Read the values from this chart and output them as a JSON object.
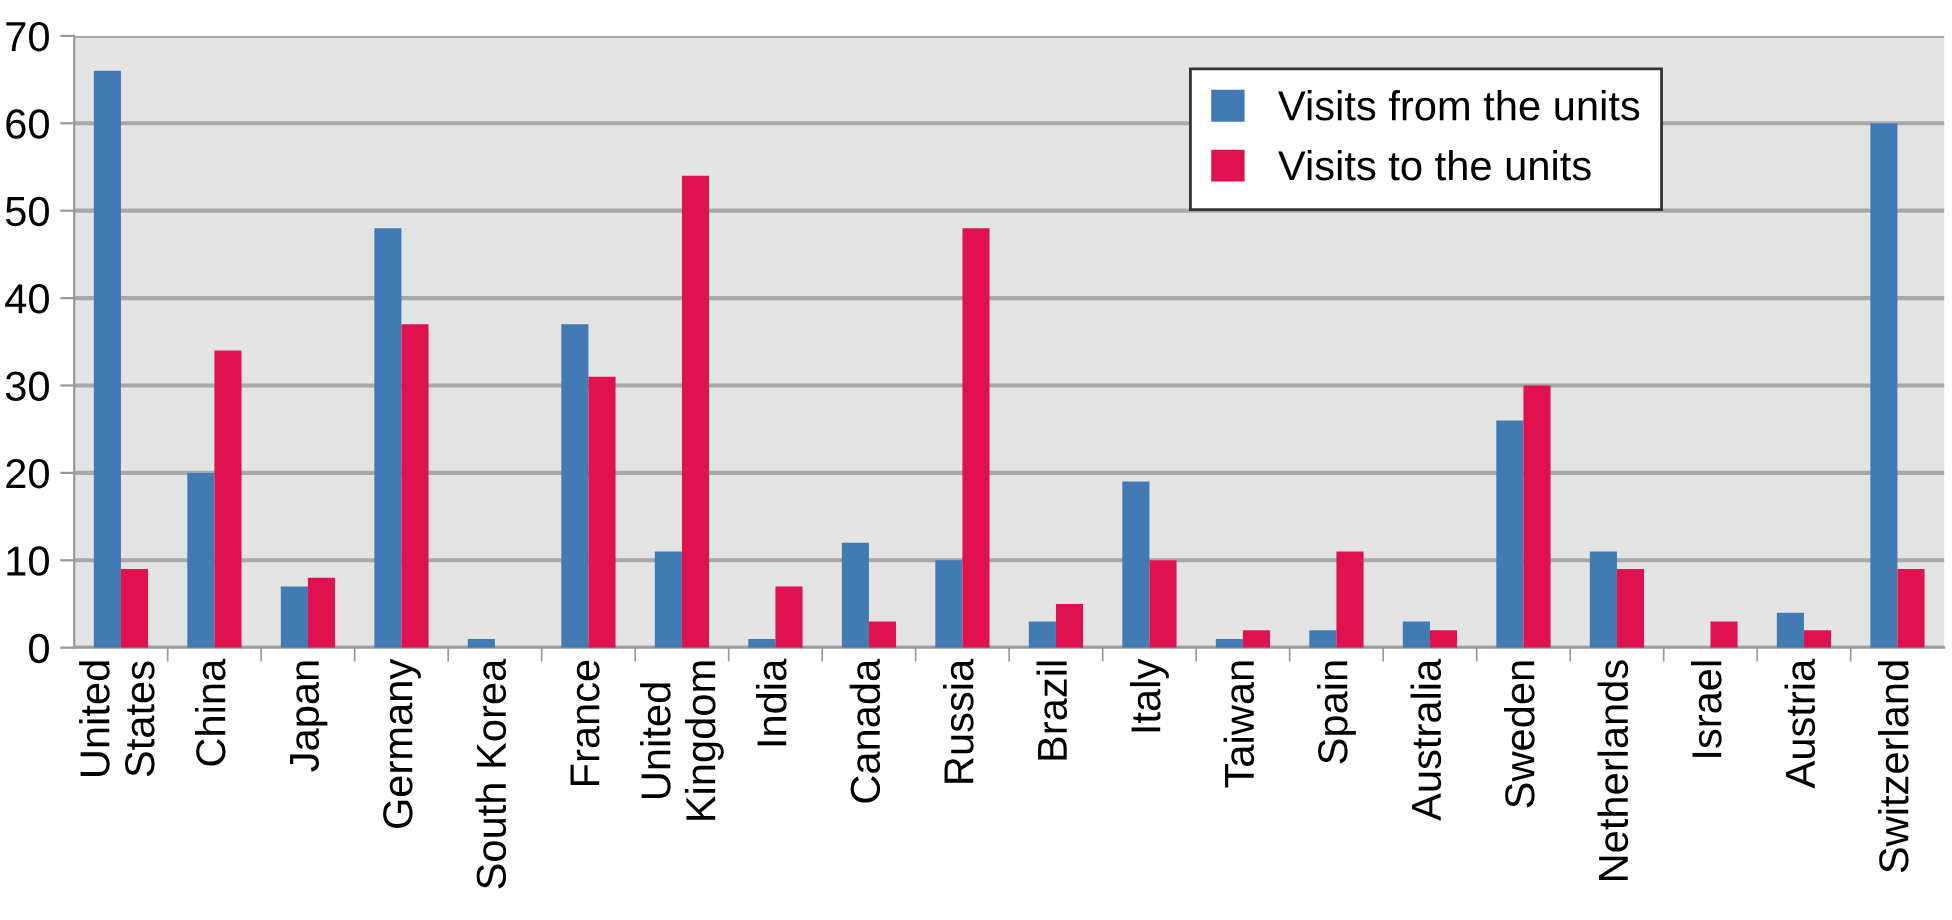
{
  "chart_data": {
    "type": "bar",
    "categories": [
      "United\nStates",
      "China",
      "Japan",
      "Germany",
      "South Korea",
      "France",
      "United\nKingdom",
      "India",
      "Canada",
      "Russia",
      "Brazil",
      "Italy",
      "Taiwan",
      "Spain",
      "Australia",
      "Sweden",
      "Netherlands",
      "Israel",
      "Austria",
      "Switzerland"
    ],
    "series": [
      {
        "name": "Visits from the units",
        "color": "#427bb3",
        "values": [
          66,
          20,
          7,
          48,
          1,
          37,
          11,
          1,
          12,
          10,
          3,
          19,
          1,
          2,
          3,
          26,
          11,
          0,
          4,
          60
        ]
      },
      {
        "name": "Visits to the units",
        "color": "#e0114f",
        "values": [
          9,
          34,
          8,
          37,
          0,
          31,
          54,
          7,
          3,
          48,
          5,
          10,
          2,
          11,
          2,
          30,
          9,
          3,
          2,
          9
        ]
      }
    ],
    "ylim": [
      0,
      70
    ],
    "yticks": [
      0,
      10,
      20,
      30,
      40,
      50,
      60,
      70
    ],
    "grid": "y",
    "legend": "top right"
  }
}
